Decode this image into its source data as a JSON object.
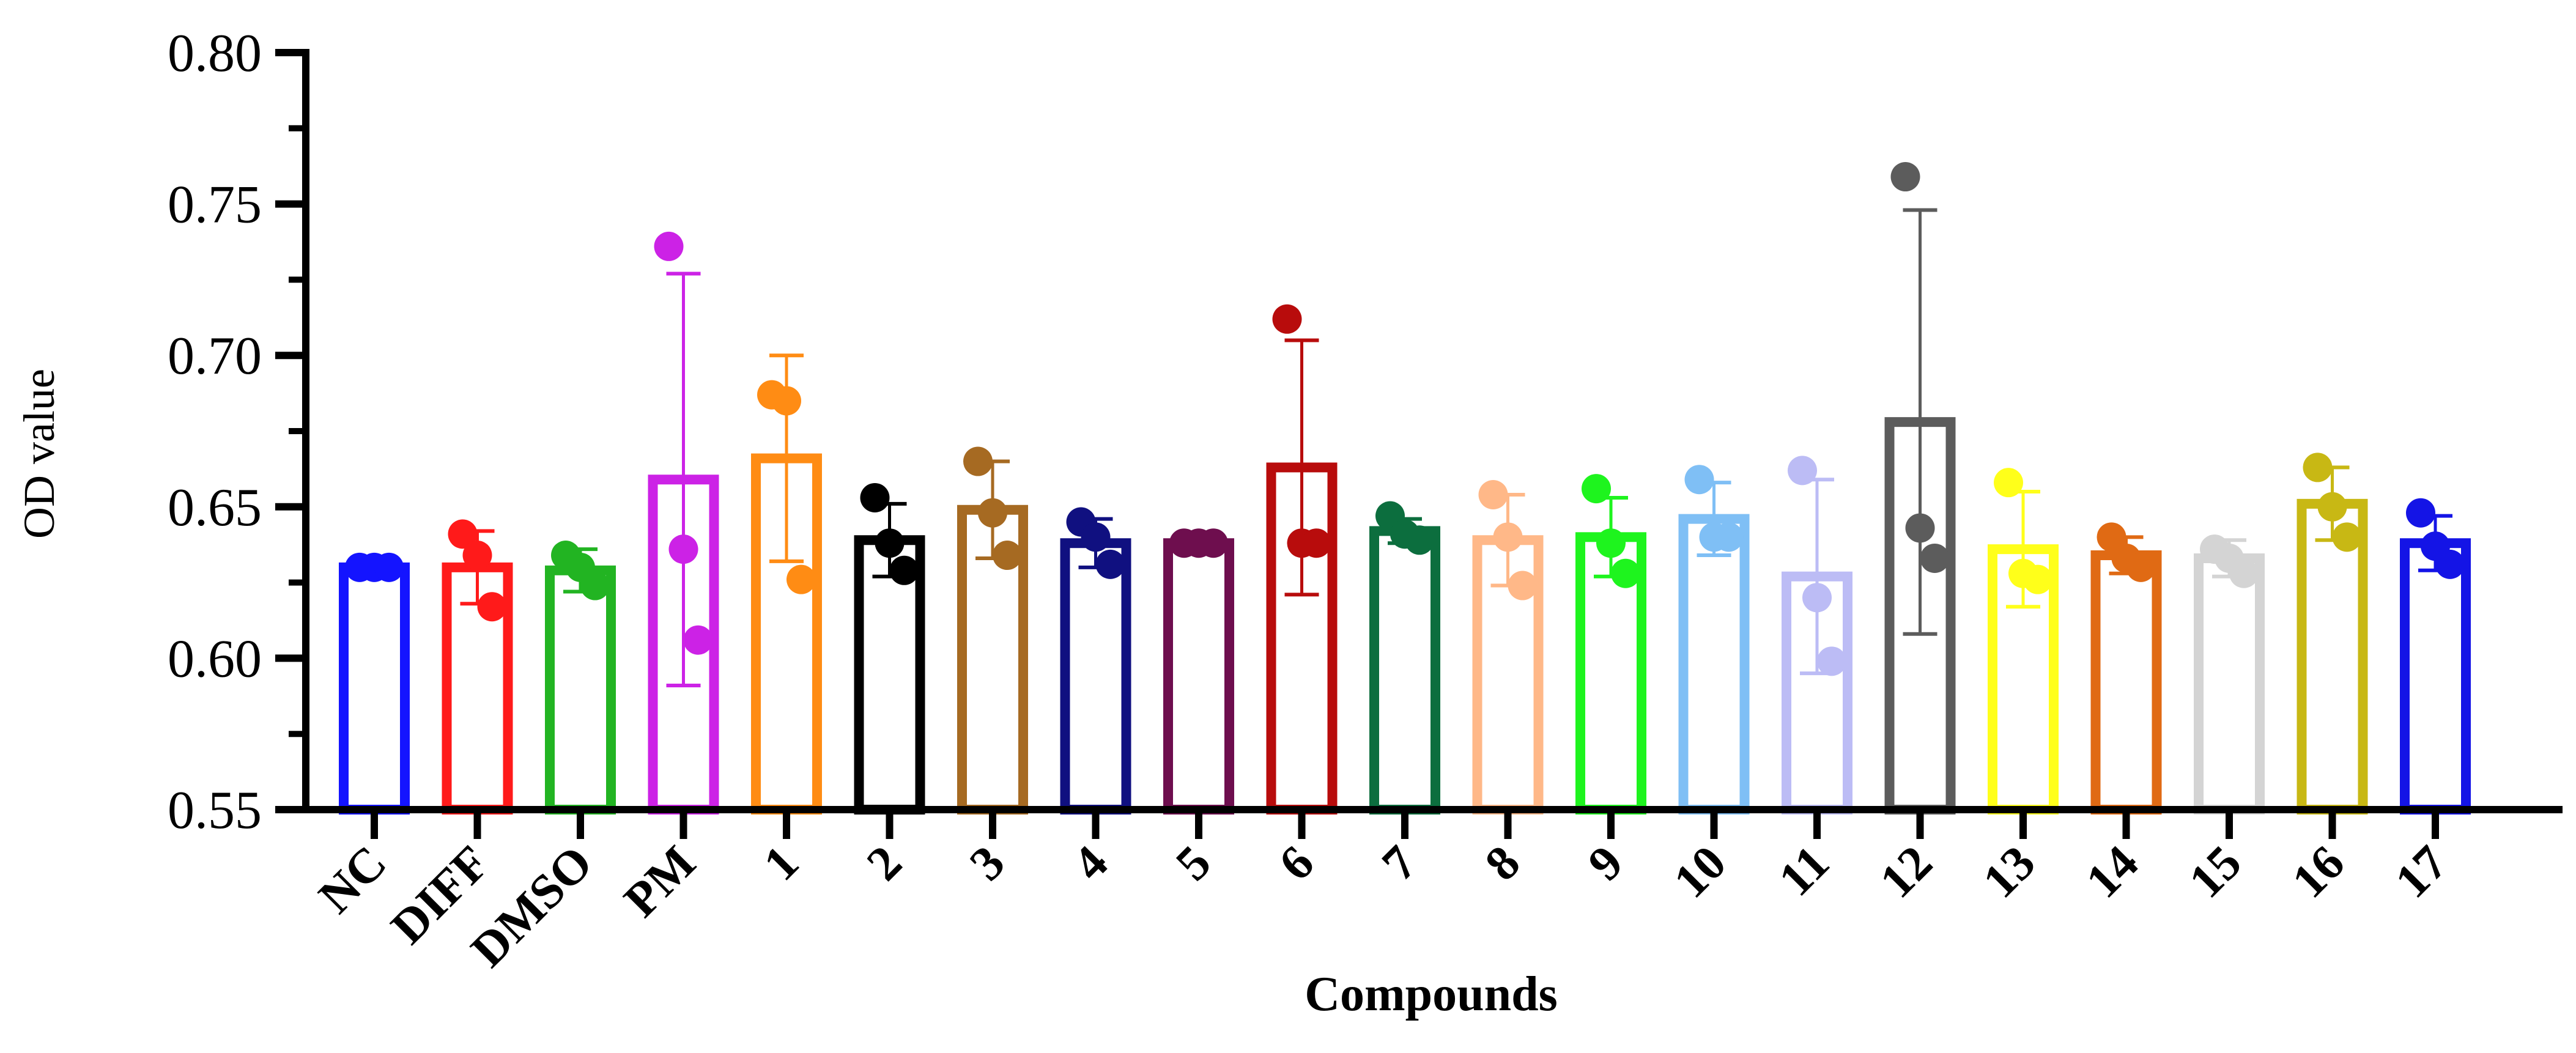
{
  "chart_data": {
    "type": "bar",
    "title": "",
    "xlabel": "Compounds",
    "ylabel": "OD value",
    "ylim": [
      0.55,
      0.8
    ],
    "y_ticks": [
      "0.55",
      "0.60",
      "0.65",
      "0.70",
      "0.75",
      "0.80"
    ],
    "grid": false,
    "legend": "none",
    "categories": [
      "NC",
      "DIFF",
      "DMSO",
      "PM",
      "1",
      "2",
      "3",
      "4",
      "5",
      "6",
      "7",
      "8",
      "9",
      "10",
      "11",
      "12",
      "13",
      "14",
      "15",
      "16",
      "17"
    ],
    "colors": [
      "#1414ff",
      "#ff1a1a",
      "#22b422",
      "#cc22e6",
      "#ff8c14",
      "#000000",
      "#a66a22",
      "#101080",
      "#6e0e4e",
      "#b80c0c",
      "#0c6e3e",
      "#ffb888",
      "#1ef41e",
      "#7fbff5",
      "#bcbcf5",
      "#5c5c5c",
      "#ffff1a",
      "#e06a14",
      "#d4d4d4",
      "#c8b814",
      "#1414e6"
    ],
    "means": [
      0.63,
      0.63,
      0.629,
      0.659,
      0.666,
      0.639,
      0.649,
      0.638,
      0.638,
      0.663,
      0.642,
      0.639,
      0.64,
      0.646,
      0.627,
      0.678,
      0.636,
      0.634,
      0.633,
      0.651,
      0.638
    ],
    "sd": [
      0.001,
      0.012,
      0.007,
      0.068,
      0.034,
      0.012,
      0.016,
      0.008,
      0.001,
      0.042,
      0.004,
      0.015,
      0.013,
      0.012,
      0.032,
      0.07,
      0.019,
      0.006,
      0.006,
      0.012,
      0.009
    ],
    "points": [
      [
        0.63,
        0.63,
        0.63
      ],
      [
        0.641,
        0.634,
        0.617
      ],
      [
        0.634,
        0.63,
        0.624
      ],
      [
        0.736,
        0.636,
        0.606
      ],
      [
        0.687,
        0.685,
        0.626
      ],
      [
        0.653,
        0.638,
        0.629
      ],
      [
        0.665,
        0.648,
        0.634
      ],
      [
        0.645,
        0.64,
        0.631
      ],
      [
        0.638,
        0.638,
        0.638
      ],
      [
        0.712,
        0.638,
        0.638
      ],
      [
        0.647,
        0.641,
        0.639
      ],
      [
        0.654,
        0.64,
        0.624
      ],
      [
        0.656,
        0.638,
        0.628
      ],
      [
        0.659,
        0.64,
        0.64
      ],
      [
        0.662,
        0.62,
        0.599
      ],
      [
        0.759,
        0.643,
        0.633
      ],
      [
        0.658,
        0.628,
        0.626
      ],
      [
        0.64,
        0.633,
        0.63
      ],
      [
        0.636,
        0.633,
        0.628
      ],
      [
        0.663,
        0.65,
        0.64
      ],
      [
        0.648,
        0.637,
        0.631
      ]
    ]
  }
}
